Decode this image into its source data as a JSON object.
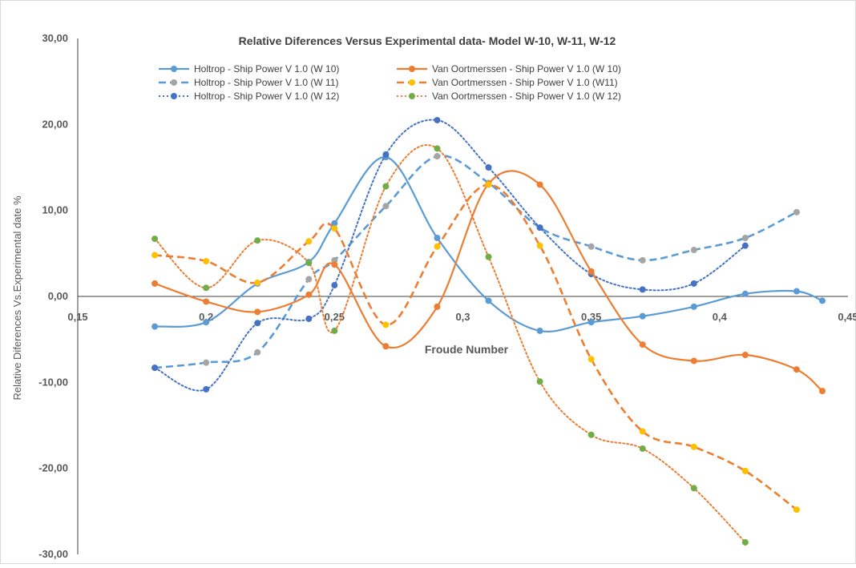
{
  "chart_data": {
    "type": "line",
    "title": "Relative Diferences Versus Experimental data- Model W-10, W-11, W-12",
    "xlabel": "Froude Number",
    "ylabel": "Relative Diferences Vs.Experimental date %",
    "xlim": [
      0.15,
      0.45
    ],
    "ylim": [
      -30,
      30
    ],
    "x_ticks": [
      0.15,
      0.2,
      0.25,
      0.3,
      0.35,
      0.4,
      0.45
    ],
    "x_tick_labels": [
      "0,15",
      "0,2",
      "0,25",
      "0,3",
      "0,35",
      "0,4",
      "0,45"
    ],
    "y_ticks": [
      30,
      20,
      10,
      0,
      -10,
      -20,
      -30
    ],
    "y_tick_labels": [
      "30,00",
      "20,00",
      "10,00",
      "0,00",
      "-10,00",
      "-20,00",
      "-30,00"
    ],
    "grid": false,
    "smooth": true,
    "legend_position": "top",
    "series": [
      {
        "name": "Holtrop - Ship Power V 1.0 (W 10)",
        "line_color": "#5B9BD5",
        "marker_color": "#5B9BD5",
        "dash": "solid",
        "x": [
          0.18,
          0.2,
          0.22,
          0.24,
          0.25,
          0.27,
          0.29,
          0.31,
          0.33,
          0.35,
          0.37,
          0.39,
          0.41,
          0.43,
          0.44
        ],
        "y": [
          -3.5,
          -3.0,
          1.5,
          4.0,
          8.5,
          16.2,
          6.8,
          -0.5,
          -4.0,
          -3.0,
          -2.3,
          -1.2,
          0.3,
          0.6,
          -0.5
        ]
      },
      {
        "name": "Holtrop - Ship Power V 1.0 (W 11)",
        "line_color": "#5B9BD5",
        "marker_color": "#A5A5A5",
        "dash": "dashed",
        "x": [
          0.18,
          0.2,
          0.22,
          0.24,
          0.25,
          0.27,
          0.29,
          0.31,
          0.33,
          0.35,
          0.37,
          0.39,
          0.41,
          0.43
        ],
        "y": [
          -8.3,
          -7.7,
          -6.5,
          2.0,
          4.2,
          10.5,
          16.3,
          13.2,
          8.0,
          5.8,
          4.2,
          5.4,
          6.8,
          9.8
        ]
      },
      {
        "name": "Holtrop - Ship Power V 1.0 (W 12)",
        "line_color": "#4472C4",
        "marker_color": "#4472C4",
        "dash": "dotted",
        "x": [
          0.18,
          0.2,
          0.22,
          0.24,
          0.25,
          0.27,
          0.29,
          0.31,
          0.33,
          0.35,
          0.37,
          0.39,
          0.41
        ],
        "y": [
          -8.3,
          -10.8,
          -3.1,
          -2.6,
          1.3,
          16.5,
          20.5,
          15.0,
          8.0,
          2.6,
          0.8,
          1.5,
          5.9
        ]
      },
      {
        "name": "Van Oortmerssen - Ship Power V 1.0 (W 10)",
        "line_color": "#ED7D31",
        "marker_color": "#ED7D31",
        "dash": "solid",
        "x": [
          0.18,
          0.2,
          0.22,
          0.24,
          0.25,
          0.27,
          0.29,
          0.31,
          0.33,
          0.35,
          0.37,
          0.39,
          0.41,
          0.43,
          0.44
        ],
        "y": [
          1.5,
          -0.6,
          -1.8,
          0.2,
          3.7,
          -5.8,
          -1.2,
          13.1,
          13.0,
          2.9,
          -5.6,
          -7.5,
          -6.8,
          -8.5,
          -11.0
        ]
      },
      {
        "name": "Van Oortmerssen - Ship Power V 1.0 (W11)",
        "line_color": "#ED7D31",
        "marker_color": "#FFC000",
        "dash": "dashed",
        "x": [
          0.18,
          0.2,
          0.22,
          0.24,
          0.25,
          0.27,
          0.29,
          0.31,
          0.33,
          0.35,
          0.37,
          0.39,
          0.41,
          0.43
        ],
        "y": [
          4.8,
          4.1,
          1.6,
          6.4,
          7.9,
          -3.3,
          5.8,
          13.0,
          5.9,
          -7.3,
          -15.7,
          -17.5,
          -20.3,
          -24.8
        ]
      },
      {
        "name": "Van Oortmerssen - Ship Power V 1.0 (W 12)",
        "line_color": "#ED7D31",
        "marker_color": "#70AD47",
        "dash": "dotted",
        "x": [
          0.18,
          0.2,
          0.22,
          0.24,
          0.25,
          0.27,
          0.29,
          0.31,
          0.33,
          0.35,
          0.37,
          0.39,
          0.41
        ],
        "y": [
          6.7,
          1.0,
          6.5,
          3.9,
          -4.0,
          12.8,
          17.2,
          4.6,
          -9.9,
          -16.1,
          -17.7,
          -22.3,
          -28.6
        ]
      }
    ]
  }
}
